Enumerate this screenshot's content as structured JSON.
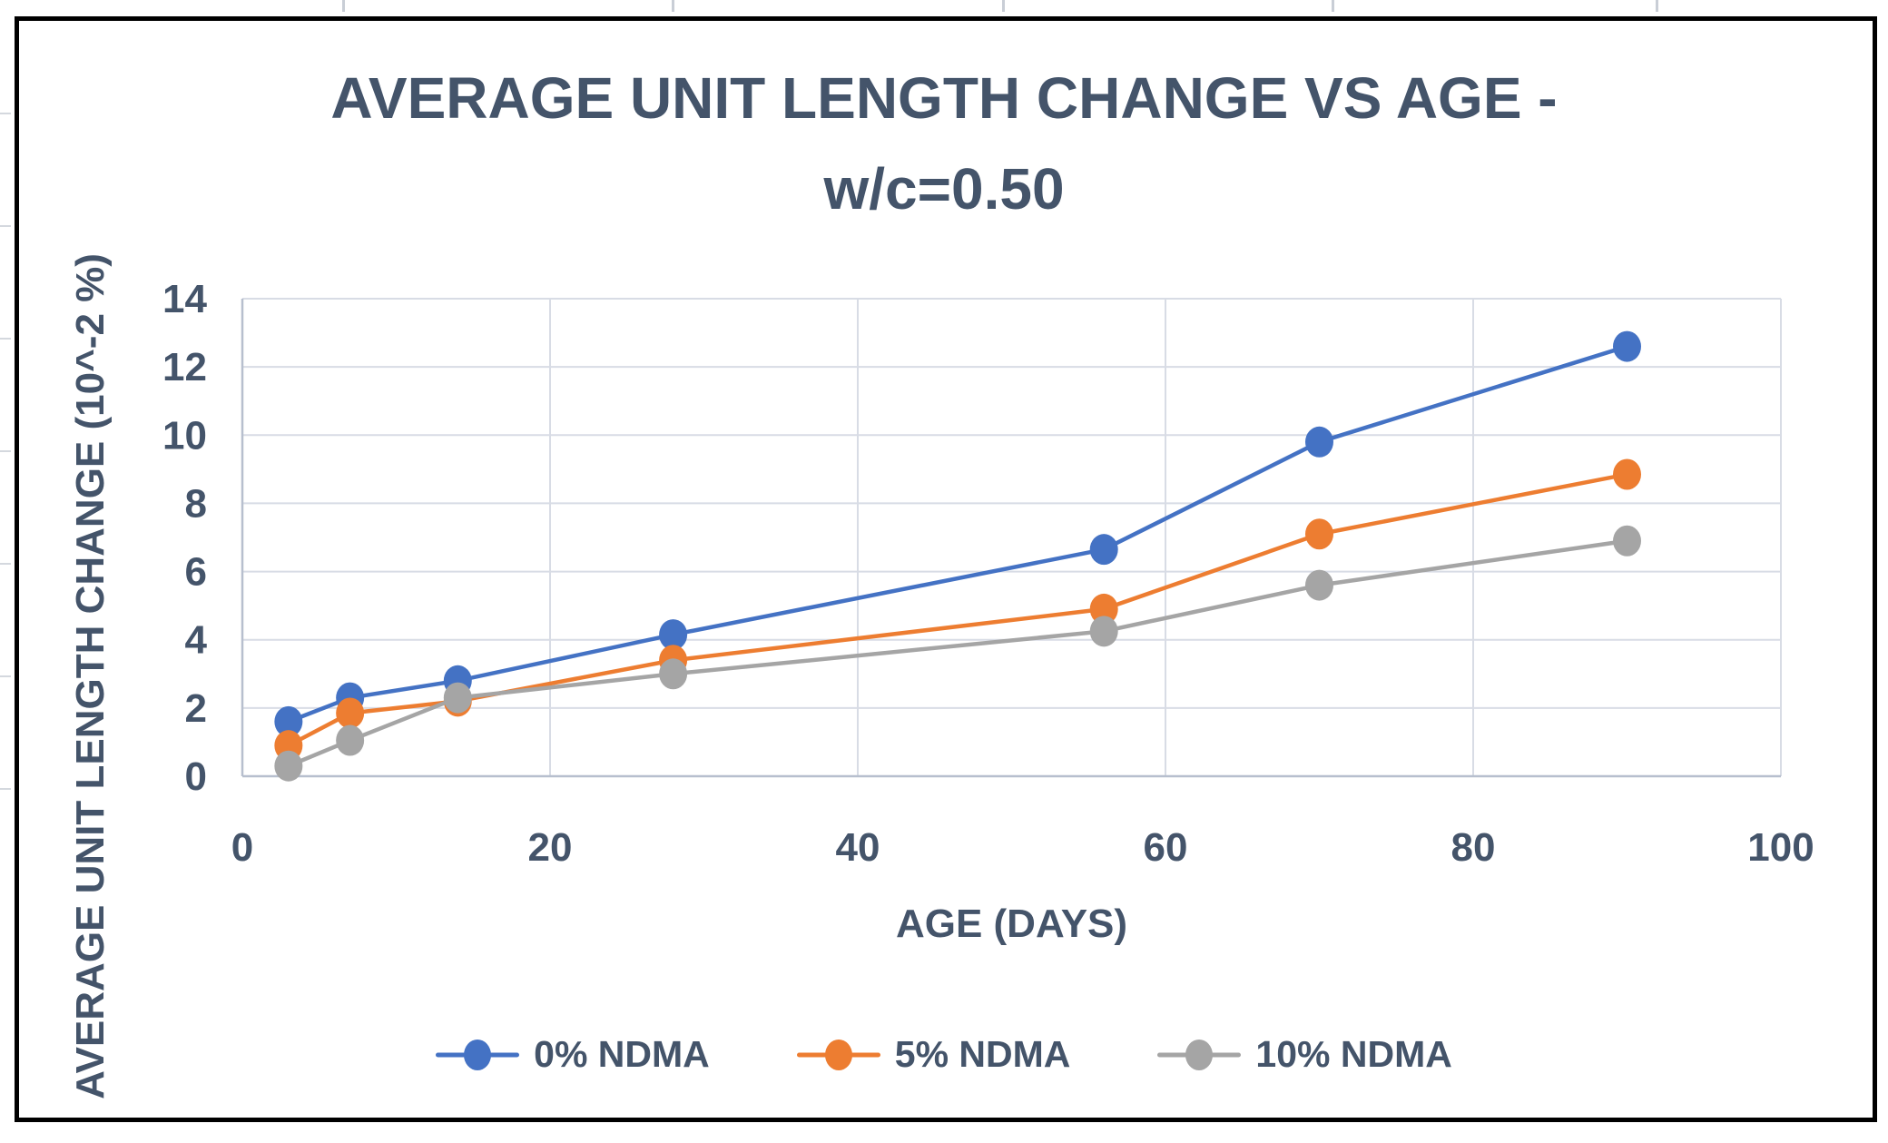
{
  "chart_data": {
    "type": "line",
    "title_line1": "AVERAGE UNIT LENGTH CHANGE VS AGE -",
    "title_line2": "w/c=0.50",
    "xlabel": "AGE (DAYS)",
    "ylabel": "AVERAGE UNIT LENGTH CHANGE (10^-2 %)",
    "xlim": [
      0,
      100
    ],
    "ylim": [
      0,
      14
    ],
    "xticks": [
      0,
      20,
      40,
      60,
      80,
      100
    ],
    "yticks": [
      0,
      2,
      4,
      6,
      8,
      10,
      12,
      14
    ],
    "grid": true,
    "legend_position": "bottom",
    "x": [
      3,
      7,
      14,
      28,
      56,
      70,
      90
    ],
    "series": [
      {
        "name": "0% NDMA",
        "color": "#4472C4",
        "values": [
          1.6,
          2.3,
          2.8,
          4.15,
          6.65,
          9.8,
          12.6
        ]
      },
      {
        "name": "5% NDMA",
        "color": "#ED7D31",
        "values": [
          0.9,
          1.85,
          2.2,
          3.4,
          4.9,
          7.1,
          8.85
        ]
      },
      {
        "name": "10% NDMA",
        "color": "#A5A5A5",
        "values": [
          0.3,
          1.05,
          2.3,
          3.0,
          4.25,
          5.6,
          6.9
        ]
      }
    ]
  },
  "colors": {
    "text": "#44546A",
    "gridline": "#D8DCE5",
    "axis_line": "#B7BFCE",
    "frame": "#000000",
    "background": "#FFFFFF"
  }
}
